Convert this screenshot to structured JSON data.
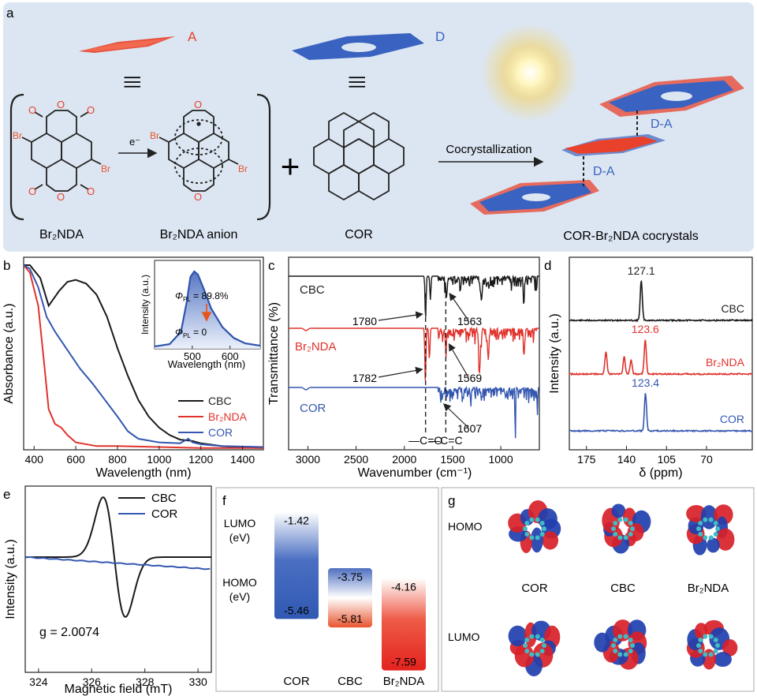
{
  "panel_a": {
    "letter": "a",
    "label_A": "A",
    "label_D": "D",
    "equiv": "|||",
    "e_minus": "e⁻",
    "br_sub": "Br",
    "br2nda_name": "Br₂NDA",
    "anion_name": "Br₂NDA anion",
    "cor_name": "COR",
    "plus": "+",
    "process": "Cocrystallization",
    "da_label": "D-A",
    "cocrystal_name": "COR-Br₂NDA cocrystals",
    "colors": {
      "acceptor": "#e8412c",
      "donor": "#3a62c0",
      "background": "#dce6f2"
    }
  },
  "panel_labels": {
    "b": "b",
    "c": "c",
    "d": "d",
    "e": "e",
    "f": "f",
    "g": "g"
  },
  "panel_g": {
    "rows": [
      "HOMO",
      "LUMO"
    ],
    "columns": [
      "COR",
      "CBC",
      "Br₂NDA"
    ]
  },
  "chart_data": [
    {
      "panel": "b",
      "type": "line",
      "xlabel": "Wavelength (nm)",
      "ylabel": "Absorbance (a.u.)",
      "xlim": [
        350,
        1500
      ],
      "xticks": [
        400,
        600,
        800,
        1000,
        1200,
        1400
      ],
      "legend_position": "bottom-right",
      "series": [
        {
          "name": "CBC",
          "color": "#1a1a1a",
          "x": [
            350,
            380,
            430,
            470,
            520,
            560,
            600,
            650,
            700,
            750,
            800,
            850,
            900,
            950,
            1000,
            1050,
            1100,
            1140,
            1160,
            1200,
            1300,
            1400,
            1500
          ],
          "y": [
            1.0,
            1.0,
            0.93,
            0.78,
            0.86,
            0.91,
            0.92,
            0.9,
            0.84,
            0.72,
            0.55,
            0.4,
            0.27,
            0.18,
            0.12,
            0.08,
            0.055,
            0.05,
            0.048,
            0.035,
            0.02,
            0.012,
            0.01
          ]
        },
        {
          "name": "Br₂NDA",
          "color": "#e0322c",
          "x": [
            350,
            380,
            420,
            450,
            470,
            500,
            530,
            560,
            600,
            700,
            800,
            1000,
            1200,
            1500
          ],
          "y": [
            1.0,
            0.96,
            0.78,
            0.45,
            0.22,
            0.14,
            0.12,
            0.08,
            0.04,
            0.02,
            0.02,
            0.015,
            0.01,
            0.01
          ]
        },
        {
          "name": "COR",
          "color": "#3457b0",
          "x": [
            350,
            380,
            420,
            460,
            500,
            560,
            620,
            680,
            740,
            800,
            850,
            900,
            1000,
            1100,
            1140,
            1160,
            1200,
            1300,
            1500
          ],
          "y": [
            1.0,
            0.98,
            0.88,
            0.72,
            0.64,
            0.54,
            0.44,
            0.36,
            0.27,
            0.18,
            0.1,
            0.06,
            0.04,
            0.035,
            0.06,
            0.04,
            0.03,
            0.02,
            0.015
          ]
        }
      ],
      "inset": {
        "type": "area",
        "xlabel": "Wavelength (nm)",
        "ylabel": "Intensity (a.u.)",
        "xlim": [
          400,
          680
        ],
        "xticks": [
          500,
          600
        ],
        "annotation_top_symbol": "Φ",
        "annotation_top_sub": "PL",
        "annotation_top": " = 89.8%",
        "annotation_bottom_symbol": "Φ",
        "annotation_bottom_sub": "PL",
        "annotation_bottom": " = 0",
        "x": [
          400,
          440,
          470,
          485,
          495,
          505,
          515,
          530,
          550,
          580,
          610,
          640,
          680
        ],
        "y": [
          0.03,
          0.06,
          0.22,
          0.6,
          0.93,
          1.0,
          0.96,
          0.78,
          0.52,
          0.28,
          0.14,
          0.07,
          0.04
        ]
      }
    },
    {
      "panel": "c",
      "type": "line",
      "xlabel": "Wavenumber (cm⁻¹)",
      "ylabel": "Transmittance (%)",
      "xlim": [
        3200,
        600
      ],
      "xticks": [
        3000,
        2500,
        2000,
        1500,
        1000
      ],
      "series_labels": [
        "CBC",
        "Br₂NDA",
        "COR"
      ],
      "colors": [
        "#1a1a1a",
        "#e0322c",
        "#3457b0"
      ],
      "peaks": [
        {
          "series": "CBC",
          "wavenumber": 1780,
          "label": "1780"
        },
        {
          "series": "CBC",
          "wavenumber": 1563,
          "label": "1563"
        },
        {
          "series": "Br₂NDA",
          "wavenumber": 1782,
          "label": "1782"
        },
        {
          "series": "Br₂NDA",
          "wavenumber": 1569,
          "label": "1569"
        },
        {
          "series": "COR",
          "wavenumber": 1607,
          "label": "1607"
        }
      ],
      "dashed_lines": [
        {
          "wavenumber": 1780,
          "label": "—C=O"
        },
        {
          "wavenumber": 1570,
          "label": "—C=C"
        }
      ]
    },
    {
      "panel": "d",
      "type": "line",
      "xlabel": "δ (ppm)",
      "ylabel": "Intensity (a.u.)",
      "xlim": [
        190,
        30
      ],
      "xticks": [
        175,
        140,
        105,
        70
      ],
      "series": [
        {
          "name": "CBC",
          "color": "#1a1a1a",
          "peak": 127.1,
          "peak_label": "127.1"
        },
        {
          "name": "Br₂NDA",
          "color": "#e0322c",
          "peak": 123.6,
          "peak_label": "123.6",
          "minor_peaks": [
            158,
            142,
            136
          ]
        },
        {
          "name": "COR",
          "color": "#3457b0",
          "peak": 123.4,
          "peak_label": "123.4"
        }
      ]
    },
    {
      "panel": "e",
      "type": "line",
      "xlabel": "Magnetic field (mT)",
      "ylabel": "Intensity (a.u.)",
      "xlim": [
        323.5,
        330.5
      ],
      "xticks": [
        324,
        326,
        328,
        330
      ],
      "legend_position": "top-right",
      "annotation": "g = 2.0074",
      "series": [
        {
          "name": "CBC",
          "color": "#1a1a1a",
          "center": 326.85,
          "width": 0.42,
          "amplitude": 1.0
        },
        {
          "name": "COR",
          "color": "#3457b0",
          "trend": "slightly decreasing baseline"
        }
      ]
    },
    {
      "panel": "f",
      "type": "bar",
      "ylabel_top": "LUMO",
      "ylabel_top_unit": "(eV)",
      "ylabel_bottom": "HOMO",
      "ylabel_bottom_unit": "(eV)",
      "categories": [
        "COR",
        "CBC",
        "Br₂NDA"
      ],
      "lumo": [
        -1.42,
        -3.75,
        -4.16
      ],
      "homo": [
        -5.46,
        -5.81,
        -7.59
      ],
      "lumo_labels": [
        "-1.42",
        "-3.75",
        "-4.16"
      ],
      "homo_labels": [
        "-5.46",
        "-5.81",
        "-7.59"
      ],
      "colors": [
        "#3a62c0",
        "#6d80c8",
        "#e63a2e"
      ]
    }
  ]
}
